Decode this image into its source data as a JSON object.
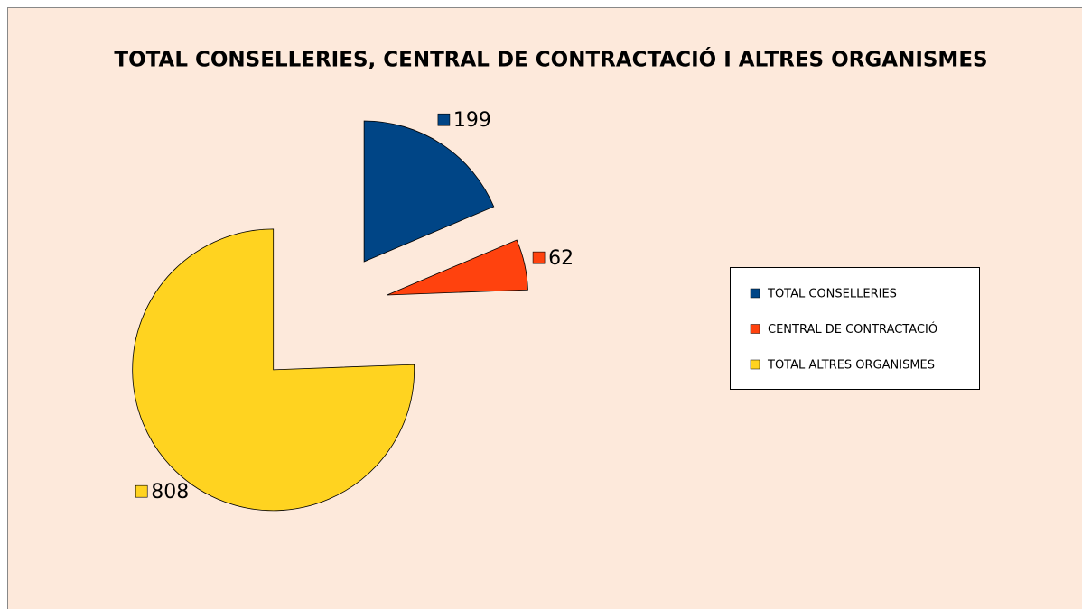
{
  "chart_data": {
    "type": "pie",
    "title": "TOTAL CONSELLERIES, CENTRAL DE CONTRACTACIÓ I ALTRES ORGANISMES",
    "categories": [
      "TOTAL CONSELLERIES",
      "CENTRAL DE CONTRACTACIÓ",
      "TOTAL ALTRES ORGANISMES"
    ],
    "values": [
      199,
      62,
      808
    ],
    "colors": [
      "#004586",
      "#ff420e",
      "#ffd320"
    ],
    "legend": "right"
  }
}
